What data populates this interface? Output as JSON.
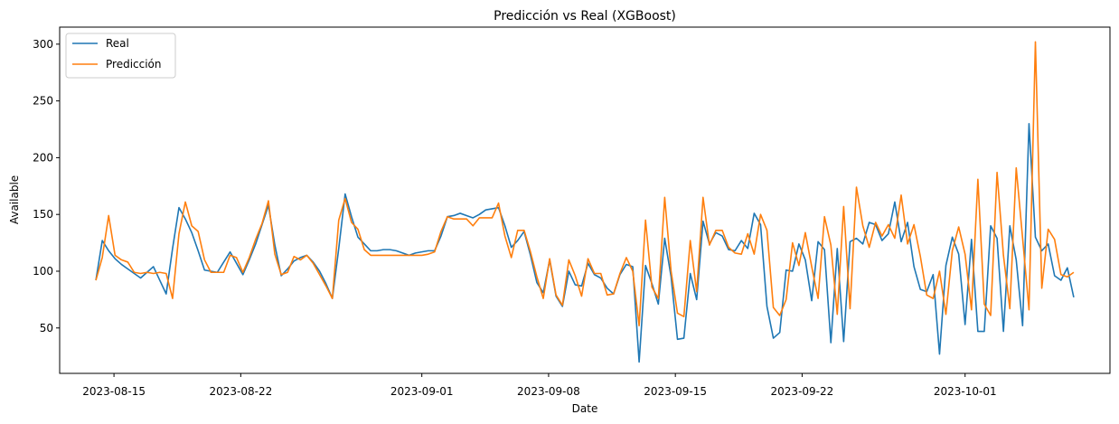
{
  "chart_data": {
    "type": "line",
    "title": "Predicción vs Real (XGBoost)",
    "xlabel": "Date",
    "ylabel": "Available",
    "x_start": "2023-08-14",
    "x_end": "2023-10-07",
    "xlim": [
      "2023-08-12",
      "2023-10-09"
    ],
    "ylim": [
      10,
      315
    ],
    "x_ticks": [
      {
        "date": "2023-08-15",
        "label": "2023-08-15"
      },
      {
        "date": "2023-08-22",
        "label": "2023-08-22"
      },
      {
        "date": "2023-09-01",
        "label": "2023-09-01"
      },
      {
        "date": "2023-09-08",
        "label": "2023-09-08"
      },
      {
        "date": "2023-09-15",
        "label": "2023-09-15"
      },
      {
        "date": "2023-09-22",
        "label": "2023-09-22"
      },
      {
        "date": "2023-10-01",
        "label": "2023-10-01"
      }
    ],
    "y_ticks": [
      50,
      100,
      150,
      200,
      250,
      300
    ],
    "grid": false,
    "legend_position": "top-left",
    "series": [
      {
        "name": "Real",
        "color": "#1f77b4",
        "values": [
          92,
          127,
          118,
          111,
          106,
          102,
          98,
          94,
          99,
          104,
          92,
          80,
          120,
          156,
          146,
          134,
          118,
          101,
          100,
          99,
          108,
          117,
          107,
          97,
          110,
          124,
          141,
          158,
          123,
          96,
          102,
          109,
          112,
          114,
          108,
          100,
          89,
          76,
          120,
          168,
          148,
          130,
          124,
          118,
          118,
          119,
          119,
          118,
          116,
          114,
          116,
          117,
          118,
          118,
          131,
          148,
          149,
          151,
          149,
          147,
          150,
          154,
          155,
          156,
          140,
          121,
          127,
          135,
          114,
          90,
          81,
          110,
          78,
          69,
          100,
          88,
          87,
          107,
          97,
          94,
          85,
          80,
          97,
          106,
          104,
          20,
          105,
          89,
          71,
          129,
          95,
          40,
          41,
          98,
          75,
          144,
          124,
          134,
          131,
          119,
          118,
          127,
          120,
          151,
          141,
          69,
          41,
          46,
          101,
          100,
          124,
          110,
          74,
          126,
          119,
          37,
          120,
          38,
          126,
          129,
          124,
          143,
          141,
          127,
          133,
          161,
          126,
          143,
          104,
          84,
          82,
          97,
          27,
          105,
          130,
          115,
          53,
          128,
          47,
          47,
          140,
          129,
          47,
          140,
          110,
          52,
          230,
          130,
          118,
          124,
          96,
          92,
          103,
          77
        ]
      },
      {
        "name": "Predicción",
        "color": "#ff7f0e",
        "values": [
          92,
          112,
          149,
          114,
          110,
          108,
          99,
          98,
          99,
          98,
          99,
          98,
          76,
          133,
          161,
          140,
          135,
          110,
          99,
          99,
          99,
          114,
          112,
          99,
          112,
          128,
          142,
          162,
          115,
          97,
          99,
          113,
          110,
          114,
          107,
          97,
          87,
          76,
          145,
          164,
          143,
          137,
          119,
          114,
          114,
          114,
          114,
          114,
          114,
          114,
          114,
          114,
          115,
          117,
          135,
          148,
          146,
          146,
          146,
          140,
          147,
          147,
          147,
          160,
          131,
          112,
          136,
          136,
          117,
          95,
          76,
          111,
          79,
          70,
          110,
          96,
          78,
          111,
          98,
          98,
          79,
          80,
          98,
          112,
          100,
          52,
          145,
          86,
          76,
          165,
          100,
          63,
          60,
          127,
          82,
          165,
          123,
          136,
          136,
          121,
          116,
          115,
          133,
          115,
          150,
          136,
          68,
          61,
          75,
          125,
          105,
          134,
          104,
          76,
          148,
          123,
          62,
          157,
          67,
          174,
          140,
          121,
          143,
          131,
          141,
          129,
          167,
          124,
          141,
          113,
          79,
          76,
          100,
          62,
          118,
          139,
          115,
          66,
          181,
          71,
          61,
          187,
          114,
          67,
          191,
          129,
          66,
          302,
          85,
          137,
          128,
          97,
          95,
          99
        ]
      }
    ],
    "legend": [
      "Real",
      "Predicción"
    ]
  }
}
